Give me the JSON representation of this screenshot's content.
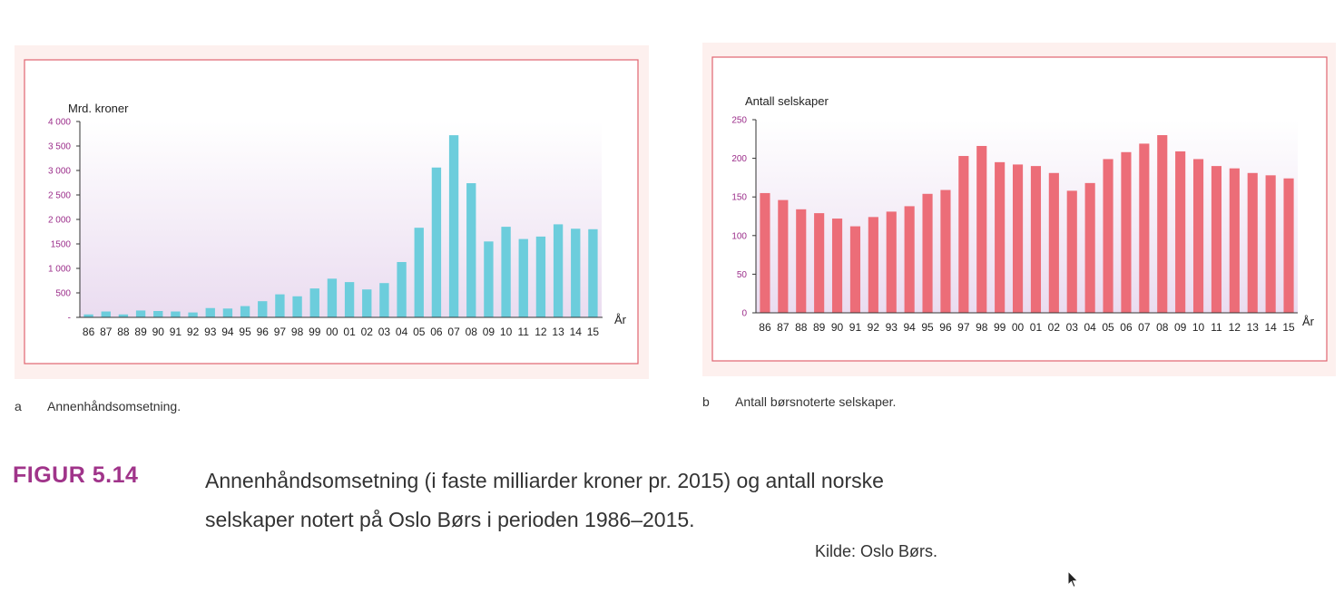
{
  "chart_data": [
    {
      "type": "bar",
      "ylabel": "Mrd. kroner",
      "xlabel": "År",
      "categories": [
        "86",
        "87",
        "88",
        "89",
        "90",
        "91",
        "92",
        "93",
        "94",
        "95",
        "96",
        "97",
        "98",
        "99",
        "00",
        "01",
        "02",
        "03",
        "04",
        "05",
        "06",
        "07",
        "08",
        "09",
        "10",
        "11",
        "12",
        "13",
        "14",
        "15"
      ],
      "values": [
        60,
        120,
        60,
        140,
        130,
        120,
        100,
        190,
        180,
        230,
        330,
        470,
        430,
        590,
        790,
        720,
        570,
        700,
        1130,
        1830,
        3060,
        3720,
        2740,
        1550,
        1850,
        1600,
        1650,
        1900,
        1810,
        1800
      ],
      "yticks": [
        0,
        500,
        1000,
        1500,
        2000,
        2500,
        3000,
        3500,
        4000
      ],
      "ytick_labels": [
        "-",
        "500",
        "1 000",
        "1500",
        "2 000",
        "2 500",
        "3 000",
        "3 500",
        "4 000"
      ],
      "ylim": [
        0,
        4000
      ],
      "bar_color": "#6ccddc",
      "grid": false,
      "caption_letter": "a",
      "caption": "Annenhåndsomsetning."
    },
    {
      "type": "bar",
      "ylabel": "Antall selskaper",
      "xlabel": "År",
      "categories": [
        "86",
        "87",
        "88",
        "89",
        "90",
        "91",
        "92",
        "93",
        "94",
        "95",
        "96",
        "97",
        "98",
        "99",
        "00",
        "01",
        "02",
        "03",
        "04",
        "05",
        "06",
        "07",
        "08",
        "09",
        "10",
        "11",
        "12",
        "13",
        "14",
        "15"
      ],
      "values": [
        155,
        146,
        134,
        129,
        122,
        112,
        124,
        131,
        138,
        154,
        159,
        203,
        216,
        195,
        192,
        190,
        181,
        158,
        168,
        199,
        208,
        219,
        230,
        209,
        199,
        190,
        187,
        181,
        178,
        174
      ],
      "yticks": [
        0,
        50,
        100,
        150,
        200,
        250
      ],
      "ytick_labels": [
        "0",
        "50",
        "100",
        "150",
        "200",
        "250"
      ],
      "ylim": [
        0,
        250
      ],
      "bar_color": "#ec6d78",
      "grid": false,
      "caption_letter": "b",
      "caption": "Antall børsnoterte selskaper."
    }
  ],
  "figure": {
    "label": "FIGUR 5.14",
    "caption_line1": "Annenhåndsomsetning (i faste milliarder kroner pr. 2015) og antall norske",
    "caption_line2": "selskaper notert på Oslo Børs i perioden 1986–2015.",
    "source": "Kilde: Oslo Børs."
  },
  "colors": {
    "panel_bg": "#fdf0ee",
    "frame": "#e06470",
    "tick_label": "#9b2d8a",
    "accent": "#a0348a"
  }
}
